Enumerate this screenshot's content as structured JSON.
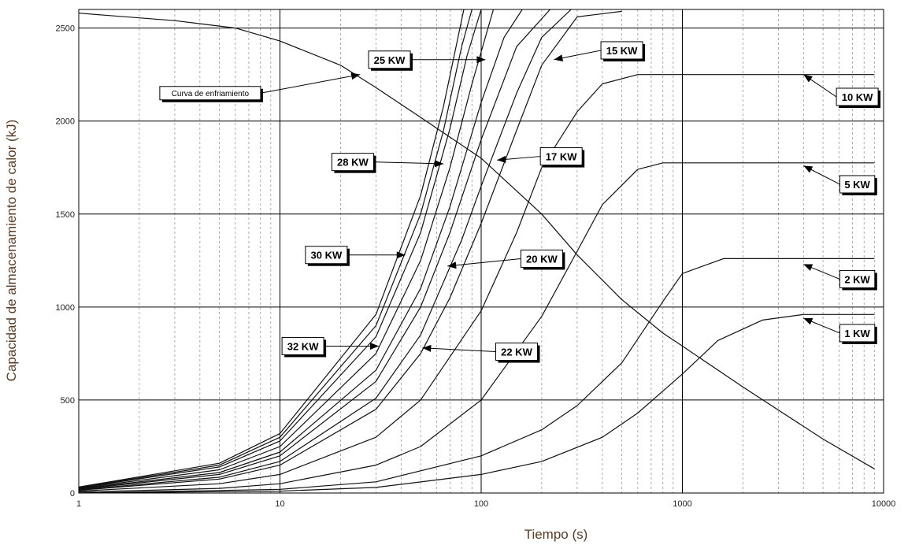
{
  "chart_data": {
    "type": "line",
    "xlabel": "Tiempo (s)",
    "ylabel": "Capacidad de almacenamiento de calor (kJ)",
    "x_scale": "log",
    "xlim": [
      1,
      10000
    ],
    "ylim": [
      0,
      2600
    ],
    "grid": true,
    "x_ticks": [
      "1",
      "10",
      "100",
      "1000",
      "10000"
    ],
    "y_ticks": [
      {
        "value": 0,
        "label": "0"
      },
      {
        "value": 500,
        "label": "500"
      },
      {
        "value": 1000,
        "label": "1000"
      },
      {
        "value": 1500,
        "label": "1500"
      },
      {
        "value": 2000,
        "label": "2000"
      },
      {
        "value": 2500,
        "label": "2500"
      }
    ],
    "series": [
      {
        "name": "Curva de enfriamiento",
        "x": [
          1,
          3,
          6,
          10,
          20,
          30,
          50,
          100,
          200,
          300,
          500,
          800,
          1000,
          2000,
          5000,
          9000
        ],
        "y": [
          2580,
          2540,
          2500,
          2430,
          2300,
          2180,
          2020,
          1800,
          1500,
          1280,
          1040,
          860,
          790,
          570,
          290,
          130
        ]
      },
      {
        "name": "1 KW",
        "x": [
          1,
          10,
          30,
          100,
          200,
          400,
          600,
          1000,
          1500,
          2500,
          4000,
          9000
        ],
        "y": [
          0,
          10,
          30,
          100,
          170,
          300,
          430,
          640,
          820,
          930,
          960,
          960
        ]
      },
      {
        "name": "2 KW",
        "x": [
          1,
          10,
          30,
          100,
          200,
          300,
          500,
          800,
          1000,
          1600,
          3000,
          9000
        ],
        "y": [
          0,
          20,
          60,
          200,
          340,
          470,
          700,
          1030,
          1180,
          1260,
          1260,
          1260
        ]
      },
      {
        "name": "5 KW",
        "x": [
          1,
          5,
          10,
          30,
          50,
          100,
          200,
          300,
          400,
          600,
          800,
          9000
        ],
        "y": [
          5,
          25,
          50,
          150,
          250,
          500,
          950,
          1300,
          1550,
          1740,
          1775,
          1775
        ]
      },
      {
        "name": "10 KW",
        "x": [
          1,
          5,
          10,
          30,
          50,
          100,
          150,
          200,
          300,
          400,
          600,
          9000
        ],
        "y": [
          10,
          50,
          100,
          300,
          500,
          980,
          1400,
          1750,
          2050,
          2200,
          2250,
          2250
        ]
      },
      {
        "name": "15 KW",
        "x": [
          1,
          5,
          10,
          30,
          50,
          70,
          100,
          150,
          200,
          300,
          500
        ],
        "y": [
          15,
          75,
          150,
          450,
          750,
          1050,
          1450,
          1950,
          2300,
          2560,
          2590
        ]
      },
      {
        "name": "17 KW",
        "x": [
          1,
          5,
          10,
          30,
          50,
          80,
          100,
          150,
          200,
          280
        ],
        "y": [
          17,
          85,
          170,
          510,
          850,
          1360,
          1650,
          2150,
          2450,
          2600
        ]
      },
      {
        "name": "20 KW",
        "x": [
          1,
          5,
          10,
          30,
          50,
          70,
          100,
          150,
          220
        ],
        "y": [
          20,
          100,
          200,
          600,
          1000,
          1400,
          1900,
          2400,
          2600
        ]
      },
      {
        "name": "22 KW",
        "x": [
          1,
          5,
          10,
          30,
          50,
          70,
          100,
          130,
          160
        ],
        "y": [
          22,
          110,
          220,
          660,
          1100,
          1540,
          2100,
          2450,
          2600
        ]
      },
      {
        "name": "25 KW",
        "x": [
          1,
          5,
          10,
          30,
          50,
          70,
          90,
          115
        ],
        "y": [
          25,
          125,
          250,
          750,
          1250,
          1750,
          2200,
          2600
        ]
      },
      {
        "name": "28 KW",
        "x": [
          1,
          5,
          10,
          30,
          50,
          70,
          85,
          100
        ],
        "y": [
          28,
          140,
          280,
          840,
          1400,
          1960,
          2350,
          2600
        ]
      },
      {
        "name": "30 KW",
        "x": [
          1,
          5,
          10,
          30,
          50,
          65,
          80,
          90
        ],
        "y": [
          30,
          150,
          300,
          900,
          1500,
          1950,
          2400,
          2600
        ]
      },
      {
        "name": "32 KW",
        "x": [
          1,
          5,
          10,
          30,
          50,
          65,
          75,
          82
        ],
        "y": [
          32,
          160,
          320,
          960,
          1600,
          2080,
          2400,
          2600
        ]
      }
    ],
    "annotations": [
      {
        "label": "Curva de enfriamiento",
        "target": [
          25,
          2250
        ],
        "box": [
          4.5,
          2150
        ],
        "small": true
      },
      {
        "label": "25 KW",
        "target": [
          105,
          2330
        ],
        "box": [
          35,
          2330
        ]
      },
      {
        "label": "15 KW",
        "target": [
          230,
          2330
        ],
        "box": [
          500,
          2380
        ]
      },
      {
        "label": "10 KW",
        "target": [
          4000,
          2250
        ],
        "box": [
          7400,
          2130
        ]
      },
      {
        "label": "28 KW",
        "target": [
          65,
          1770
        ],
        "box": [
          23,
          1780
        ]
      },
      {
        "label": "17 KW",
        "target": [
          120,
          1790
        ],
        "box": [
          250,
          1810
        ]
      },
      {
        "label": "5 KW",
        "target": [
          4000,
          1760
        ],
        "box": [
          7400,
          1660
        ]
      },
      {
        "label": "30 KW",
        "target": [
          42,
          1280
        ],
        "box": [
          17,
          1280
        ]
      },
      {
        "label": "20 KW",
        "target": [
          68,
          1220
        ],
        "box": [
          200,
          1260
        ]
      },
      {
        "label": "2 KW",
        "target": [
          4000,
          1230
        ],
        "box": [
          7400,
          1150
        ]
      },
      {
        "label": "32 KW",
        "target": [
          31,
          790
        ],
        "box": [
          13,
          790
        ]
      },
      {
        "label": "22 KW",
        "target": [
          51,
          780
        ],
        "box": [
          150,
          760
        ]
      },
      {
        "label": "1 KW",
        "target": [
          4000,
          940
        ],
        "box": [
          7400,
          860
        ]
      }
    ]
  }
}
